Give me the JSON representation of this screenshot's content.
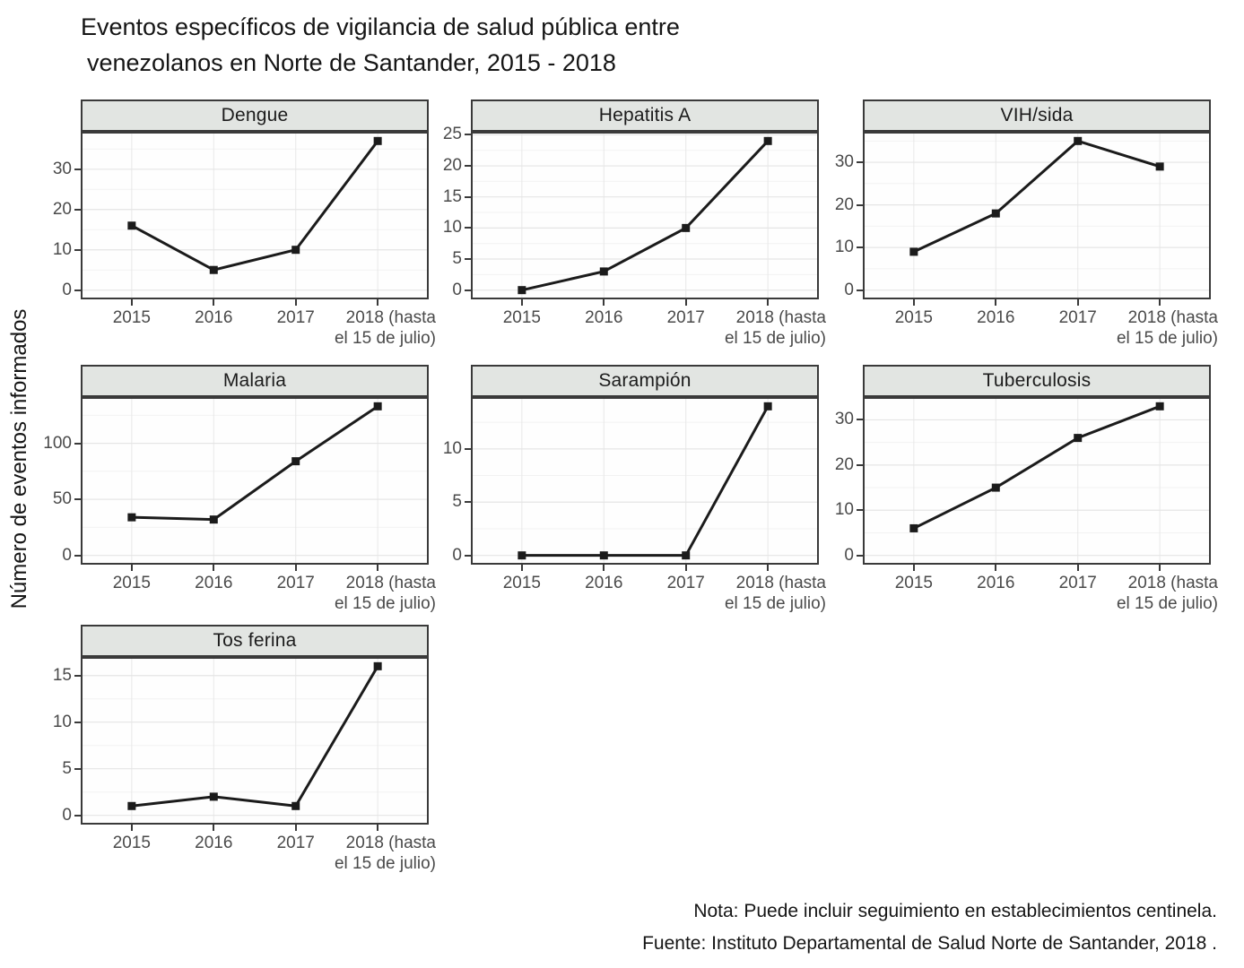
{
  "chart_data": {
    "type": "line",
    "title": "Eventos específicos de vigilancia de salud pública entre venezolanos en Norte de Santander, 2015 - 2018",
    "title_lines": [
      "Eventos específicos de vigilancia de salud pública entre",
      "venezolanos en Norte de Santander, 2015 - 2018"
    ],
    "ylabel": "Número de eventos informados",
    "xlabel": "",
    "categories": [
      "2015",
      "2016",
      "2017",
      "2018 (hasta el 15 de julio)"
    ],
    "x_tick_lines": [
      [
        "2015"
      ],
      [
        "2016"
      ],
      [
        "2017"
      ],
      [
        "2018 (hasta",
        "el 15 de julio)"
      ]
    ],
    "legend": "none",
    "grid": "horizontal major+minor, vertical major at categories",
    "marker": "square",
    "facets": [
      {
        "title": "Dengue",
        "values": [
          16,
          5,
          10,
          37
        ],
        "yticks": [
          0,
          10,
          20,
          30
        ],
        "ylim": [
          -1.85,
          38.85
        ]
      },
      {
        "title": "Hepatitis A",
        "values": [
          0,
          3,
          10,
          24
        ],
        "yticks": [
          0,
          5,
          10,
          15,
          20,
          25
        ],
        "ylim": [
          -1.2,
          25.2
        ]
      },
      {
        "title": "VIH/sida",
        "values": [
          9,
          18,
          35,
          29
        ],
        "yticks": [
          0,
          10,
          20,
          30
        ],
        "ylim": [
          -1.75,
          36.75
        ]
      },
      {
        "title": "Malaria",
        "values": [
          34,
          32,
          84,
          133
        ],
        "yticks": [
          0,
          50,
          100
        ],
        "ylim": [
          -6.65,
          139.65
        ]
      },
      {
        "title": "Sarampión",
        "values": [
          0,
          0,
          0,
          14
        ],
        "yticks": [
          0,
          5,
          10
        ],
        "ylim": [
          -0.7,
          14.7
        ]
      },
      {
        "title": "Tuberculosis",
        "values": [
          6,
          15,
          26,
          33
        ],
        "yticks": [
          0,
          10,
          20,
          30
        ],
        "ylim": [
          -1.65,
          34.65
        ]
      },
      {
        "title": "Tos ferina",
        "values": [
          1,
          2,
          1,
          16
        ],
        "yticks": [
          0,
          5,
          10,
          15
        ],
        "ylim": [
          -0.8,
          16.8
        ]
      }
    ],
    "notes": {
      "nota": "Nota: Puede incluir seguimiento en establecimientos centinela.",
      "fuente": "Fuente: Instituto Departamental de Salud Norte de Santander, 2018 ."
    },
    "colors": {
      "line": "#1b1b1b",
      "marker": "#1b1b1b",
      "grid_major": "#e5e5e5",
      "grid_minor": "#f2f2f2",
      "grid_vertical": "#e8e8e8",
      "strip_background": "#e2e5e2",
      "panel_border": "#3a3a3a",
      "tick_label": "#4a4a4a",
      "text": "#151515"
    }
  }
}
